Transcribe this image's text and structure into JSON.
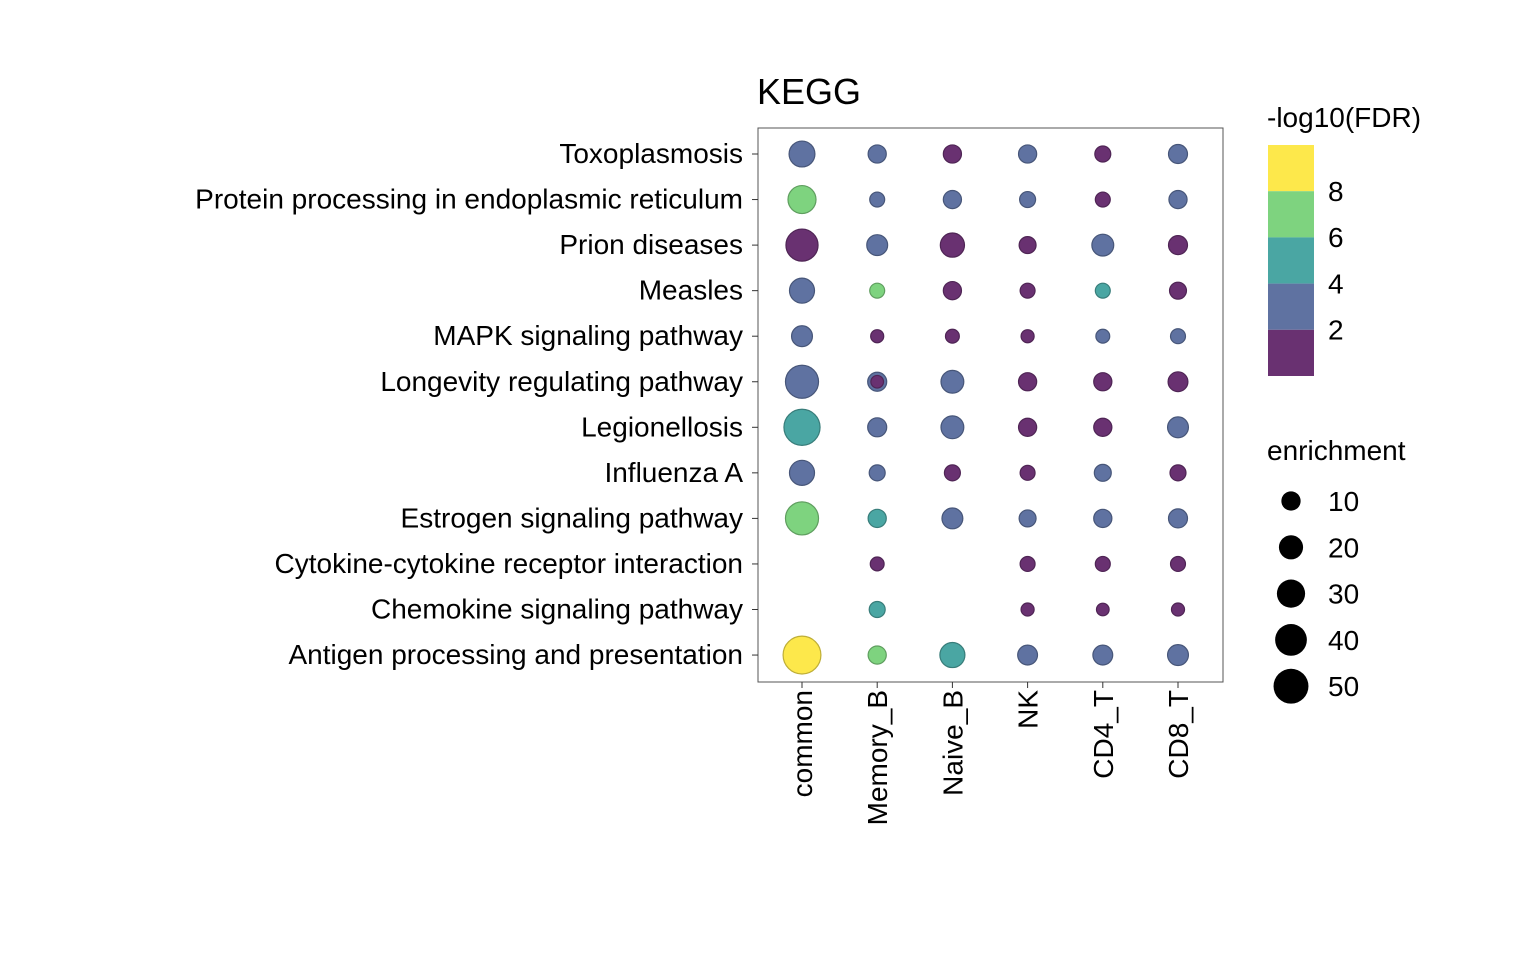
{
  "chart_data": {
    "type": "scatter",
    "subtype": "dot-plot",
    "title": "KEGG",
    "xlabel": "",
    "ylabel": "",
    "categories_x": [
      "common",
      "Memory_B",
      "Naive_B",
      "NK",
      "CD4_T",
      "CD8_T"
    ],
    "categories_y": [
      "Toxoplasmosis",
      "Protein processing in endoplasmic reticulum",
      "Prion diseases",
      "Measles",
      "MAPK signaling pathway",
      "Longevity regulating pathway",
      "Legionellosis",
      "Influenza A",
      "Estrogen signaling pathway",
      "Cytokine-cytokine receptor interaction",
      "Chemokine signaling pathway",
      "Antigen processing and presentation"
    ],
    "enrichment": [
      [
        24,
        8,
        8,
        8,
        4.5,
        9.5
      ],
      [
        29.5,
        3,
        8,
        4.5,
        3,
        8
      ],
      [
        41,
        13,
        20,
        6,
        15,
        9.5
      ],
      [
        22,
        3,
        8,
        3,
        3,
        6
      ],
      [
        13,
        0.5,
        1.5,
        0.5,
        1.5,
        3
      ],
      [
        44,
        9.5,
        17,
        8,
        8,
        11
      ],
      [
        54,
        9.5,
        17,
        8,
        8,
        13
      ],
      [
        22,
        4.5,
        4.5,
        3,
        6,
        4.5
      ],
      [
        44,
        8,
        13,
        6,
        8,
        9.5
      ],
      [
        null,
        1.5,
        null,
        3,
        3,
        3
      ],
      [
        null,
        4.5,
        null,
        0.5,
        0,
        0.5
      ],
      [
        60,
        8,
        22,
        11,
        11,
        13
      ]
    ],
    "neg_log10_fdr": [
      [
        3,
        3,
        1,
        3,
        1,
        3
      ],
      [
        7,
        3,
        3,
        3,
        1,
        3
      ],
      [
        1,
        3,
        1,
        1,
        3,
        1
      ],
      [
        3,
        7,
        1,
        1,
        5,
        1
      ],
      [
        3,
        1,
        1,
        1,
        3,
        3
      ],
      [
        3,
        3,
        3,
        1,
        1,
        1
      ],
      [
        5,
        3,
        3,
        1,
        1,
        3
      ],
      [
        3,
        3,
        1,
        1,
        3,
        1
      ],
      [
        7,
        5,
        3,
        3,
        3,
        3
      ],
      [
        null,
        1,
        null,
        1,
        1,
        1
      ],
      [
        null,
        5,
        null,
        1,
        1,
        1
      ],
      [
        9,
        7,
        5,
        3,
        3,
        3
      ]
    ],
    "extra_points": [
      {
        "x": "Memory_B",
        "y": "Longevity regulating pathway",
        "enrichment": 0,
        "neg_log10_fdr": 1
      }
    ],
    "color_legend": {
      "title": "-log10(FDR)",
      "ticks": [
        "8",
        "6",
        "4",
        "2"
      ],
      "bins": [
        {
          "range": [
            8,
            10
          ],
          "color": "#fde84b"
        },
        {
          "range": [
            6,
            8
          ],
          "color": "#7ed37f"
        },
        {
          "range": [
            4,
            6
          ],
          "color": "#4aa6a3"
        },
        {
          "range": [
            2,
            4
          ],
          "color": "#5f72a1"
        },
        {
          "range": [
            0,
            2
          ],
          "color": "#693171"
        }
      ]
    },
    "size_legend": {
      "title": "enrichment",
      "values": [
        10,
        20,
        30,
        40,
        50
      ],
      "labels": [
        "10",
        "20",
        "30",
        "40",
        "50"
      ]
    },
    "grid": false,
    "legend_placement": "right"
  }
}
